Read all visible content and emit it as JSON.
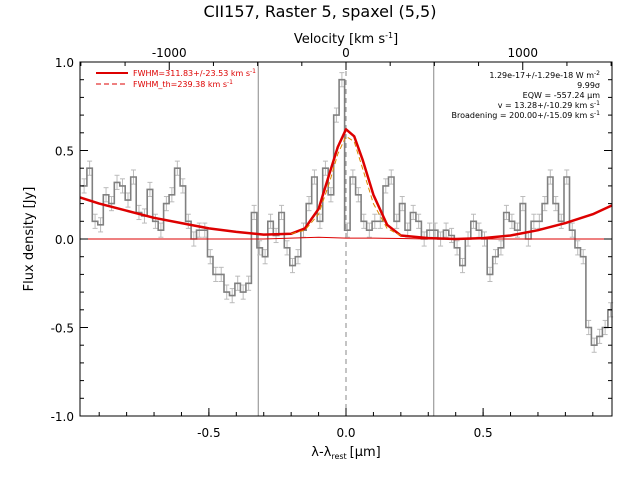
{
  "chart_data": {
    "type": "line",
    "title": "CII157, Raster 5, spaxel (5,5)",
    "xlabel": "λ-λ",
    "xlabel_sub": "rest",
    "xlabel_unit": "[μm]",
    "ylabel": "Flux density [Jy]",
    "top_axis_label": "Velocity [km s",
    "top_axis_label_sup": "-1",
    "top_axis_label_end": "]",
    "xlim": [
      -0.97,
      0.97
    ],
    "ylim": [
      -1.0,
      1.0
    ],
    "top_axis_range": [
      -1505,
      1505
    ],
    "x_ticks": [
      {
        "value": -0.5,
        "label": "-0.5"
      },
      {
        "value": 0.0,
        "label": "0.0"
      },
      {
        "value": 0.5,
        "label": "0.5"
      }
    ],
    "y_ticks": [
      {
        "value": -1.0,
        "label": "-1.0"
      },
      {
        "value": -0.5,
        "label": "-0.5"
      },
      {
        "value": 0.0,
        "label": "0.0"
      },
      {
        "value": 0.5,
        "label": "0.5"
      },
      {
        "value": 1.0,
        "label": "1.0"
      }
    ],
    "top_ticks": [
      {
        "value": -1000,
        "label": "-1000"
      },
      {
        "value": 0,
        "label": "0"
      },
      {
        "value": 1000,
        "label": "1000"
      }
    ],
    "vertical_lines": [
      -0.32,
      0.0,
      0.32
    ],
    "legend": [
      {
        "label": "FWHM=311.83+/-23.53 km s",
        "sup": "-1",
        "color": "#dd0000",
        "style": "solid"
      },
      {
        "label": "FWHM_th=239.38 km s",
        "sup": "-1",
        "color": "#dd0000",
        "style": "dashed"
      }
    ],
    "annotations": [
      {
        "text": "1.29e-17+/-1.29e-18 W m",
        "sup": "-2"
      },
      {
        "text": "9.99σ",
        "sup": ""
      },
      {
        "text": "EQW = -557.24 μm",
        "sup": ""
      },
      {
        "text": "v = 13.28+/-10.29 km s",
        "sup": "-1"
      },
      {
        "text": "Broadening = 200.00+/-15.09 km s",
        "sup": "-1"
      }
    ],
    "series": [
      {
        "name": "Observed spectrum",
        "type": "step",
        "color": "#808080",
        "error": 0.04,
        "x": [
          -0.955,
          -0.935,
          -0.915,
          -0.895,
          -0.875,
          -0.855,
          -0.835,
          -0.815,
          -0.795,
          -0.775,
          -0.755,
          -0.735,
          -0.715,
          -0.695,
          -0.675,
          -0.655,
          -0.635,
          -0.615,
          -0.595,
          -0.575,
          -0.555,
          -0.535,
          -0.515,
          -0.495,
          -0.475,
          -0.455,
          -0.435,
          -0.415,
          -0.395,
          -0.375,
          -0.355,
          -0.335,
          -0.315,
          -0.295,
          -0.275,
          -0.255,
          -0.235,
          -0.215,
          -0.195,
          -0.175,
          -0.155,
          -0.135,
          -0.115,
          -0.095,
          -0.075,
          -0.055,
          -0.035,
          -0.015,
          0.005,
          0.025,
          0.045,
          0.065,
          0.085,
          0.105,
          0.125,
          0.145,
          0.165,
          0.185,
          0.205,
          0.225,
          0.245,
          0.265,
          0.285,
          0.305,
          0.325,
          0.345,
          0.365,
          0.385,
          0.405,
          0.425,
          0.445,
          0.465,
          0.485,
          0.505,
          0.525,
          0.545,
          0.565,
          0.585,
          0.605,
          0.625,
          0.645,
          0.665,
          0.685,
          0.705,
          0.725,
          0.745,
          0.765,
          0.785,
          0.805,
          0.825,
          0.845,
          0.865,
          0.885,
          0.905,
          0.925,
          0.945,
          0.965
        ],
        "y": [
          0.3,
          0.4,
          0.1,
          0.08,
          0.25,
          0.2,
          0.32,
          0.3,
          0.22,
          0.35,
          0.15,
          0.13,
          0.28,
          0.1,
          0.05,
          0.2,
          0.25,
          0.4,
          0.3,
          0.1,
          0.0,
          0.05,
          0.05,
          -0.1,
          -0.2,
          -0.2,
          -0.3,
          -0.32,
          -0.25,
          -0.3,
          -0.25,
          0.15,
          -0.05,
          -0.1,
          0.1,
          0.02,
          0.15,
          -0.05,
          -0.15,
          -0.1,
          0.05,
          0.2,
          0.35,
          0.1,
          0.4,
          0.25,
          0.7,
          0.9,
          0.05,
          0.35,
          0.25,
          0.1,
          0.05,
          0.1,
          0.1,
          0.3,
          0.35,
          0.1,
          0.2,
          0.05,
          0.15,
          0.1,
          0.0,
          0.05,
          0.05,
          0.0,
          0.05,
          0.02,
          -0.05,
          -0.15,
          0.0,
          0.1,
          0.05,
          0.0,
          -0.2,
          -0.1,
          -0.05,
          0.15,
          0.1,
          0.05,
          0.2,
          0.0,
          0.1,
          0.1,
          0.2,
          0.35,
          0.2,
          0.1,
          0.35,
          0.05,
          -0.05,
          -0.1,
          -0.5,
          -0.6,
          -0.55,
          -0.5,
          -0.4
        ]
      },
      {
        "name": "Total fit (continuum + line)",
        "type": "curve",
        "color": "#dd0000",
        "x": [
          -0.97,
          -0.9,
          -0.8,
          -0.7,
          -0.6,
          -0.5,
          -0.4,
          -0.3,
          -0.2,
          -0.15,
          -0.1,
          -0.06,
          -0.03,
          0.0,
          0.03,
          0.06,
          0.1,
          0.15,
          0.2,
          0.3,
          0.4,
          0.5,
          0.6,
          0.7,
          0.8,
          0.9,
          0.97
        ],
        "y": [
          0.235,
          0.2,
          0.16,
          0.12,
          0.09,
          0.06,
          0.04,
          0.025,
          0.03,
          0.06,
          0.17,
          0.37,
          0.52,
          0.62,
          0.58,
          0.45,
          0.25,
          0.08,
          0.02,
          0.005,
          0.0,
          0.005,
          0.02,
          0.05,
          0.09,
          0.14,
          0.19
        ]
      },
      {
        "name": "Line only (continuum subtracted)",
        "type": "curve",
        "color": "#dd0000",
        "x": [
          -0.97,
          -0.6,
          -0.3,
          -0.2,
          -0.1,
          0.0,
          0.1,
          0.2,
          0.3,
          0.5,
          0.7,
          0.97
        ],
        "y": [
          0.0,
          0.0,
          0.0,
          0.005,
          0.01,
          0.005,
          0.005,
          0.003,
          0.0,
          0.0,
          0.0,
          0.0
        ]
      },
      {
        "name": "Thermal broadening profile",
        "type": "dashed",
        "color": "#dd8800",
        "x": [
          -0.2,
          -0.15,
          -0.1,
          -0.06,
          -0.03,
          0.0,
          0.03,
          0.06,
          0.1,
          0.15,
          0.2
        ],
        "y": [
          0.03,
          0.05,
          0.14,
          0.32,
          0.48,
          0.58,
          0.55,
          0.4,
          0.2,
          0.06,
          0.02
        ]
      }
    ]
  }
}
